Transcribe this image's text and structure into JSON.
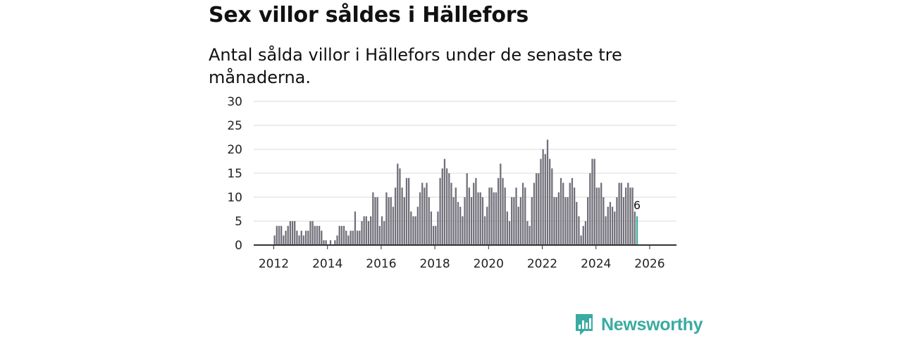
{
  "title": "Sex villor såldes i Hällefors",
  "subtitle": "Antal sålda villor i Hällefors under de senaste tre månaderna.",
  "colors": {
    "bar": "#71707a",
    "highlight": "#3aaba2",
    "grid": "#d9d9d9",
    "axis": "#333333"
  },
  "brand": {
    "name": "Newsworthy",
    "icon": "bar-chart-speech-bubble-icon"
  },
  "chart_data": {
    "type": "bar",
    "title": "Sex villor såldes i Hällefors",
    "xlabel": "",
    "ylabel": "",
    "ylim": [
      0,
      30
    ],
    "yticks": [
      "0",
      "5",
      "10",
      "15",
      "20",
      "25",
      "30"
    ],
    "xticks": [
      "2012",
      "2014",
      "2016",
      "2018",
      "2020",
      "2022",
      "2024",
      "2026"
    ],
    "x_start": "2012-01",
    "highlight_label": "6",
    "grid": true,
    "values": [
      2,
      4,
      4,
      4,
      2,
      3,
      4,
      5,
      5,
      5,
      3,
      2,
      3,
      2,
      3,
      3,
      5,
      5,
      4,
      4,
      4,
      3,
      1,
      1,
      0,
      1,
      0,
      1,
      2,
      4,
      4,
      4,
      3,
      2,
      3,
      3,
      7,
      3,
      3,
      5,
      6,
      6,
      5,
      6,
      11,
      10,
      10,
      4,
      6,
      5,
      11,
      10,
      10,
      8,
      12,
      17,
      16,
      12,
      10,
      14,
      14,
      7,
      6,
      6,
      8,
      11,
      13,
      12,
      13,
      10,
      7,
      4,
      4,
      7,
      14,
      16,
      18,
      16,
      15,
      13,
      10,
      12,
      9,
      8,
      6,
      10,
      15,
      12,
      10,
      13,
      14,
      11,
      11,
      10,
      6,
      8,
      12,
      12,
      11,
      11,
      14,
      17,
      14,
      12,
      7,
      5,
      10,
      10,
      12,
      8,
      10,
      13,
      12,
      5,
      4,
      10,
      13,
      15,
      15,
      18,
      20,
      19,
      22,
      18,
      16,
      10,
      10,
      11,
      14,
      13,
      10,
      10,
      13,
      14,
      12,
      9,
      6,
      2,
      4,
      5,
      10,
      15,
      18,
      18,
      12,
      12,
      13,
      10,
      6,
      8,
      9,
      8,
      7,
      10,
      13,
      13,
      10,
      12,
      13,
      12,
      12,
      7,
      6
    ]
  }
}
